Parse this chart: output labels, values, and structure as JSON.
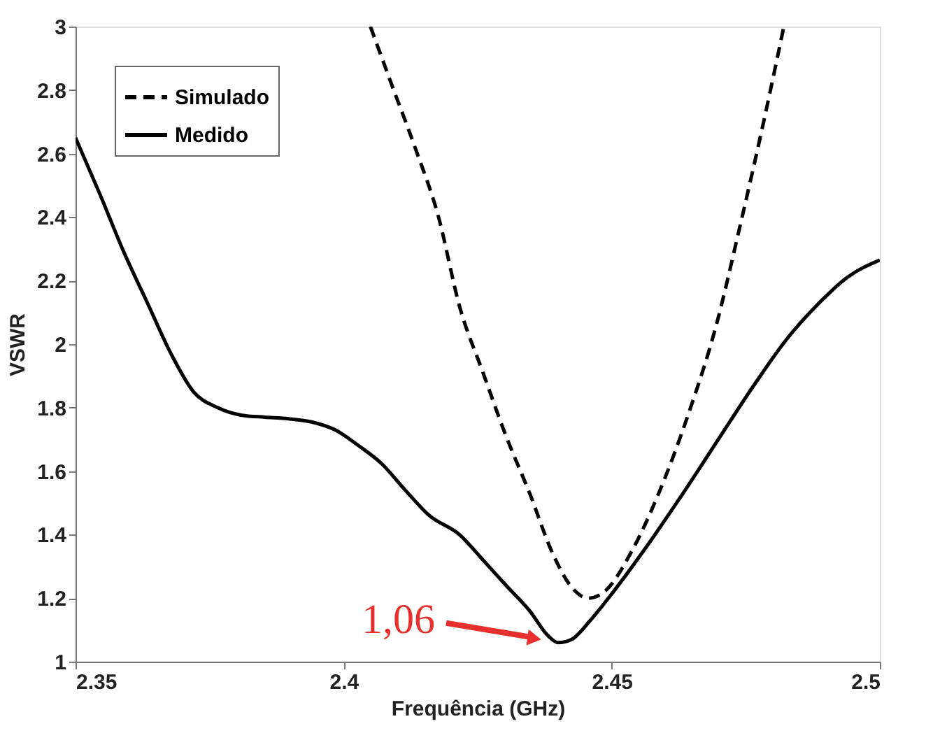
{
  "chart_data": {
    "type": "line",
    "xlabel": "Frequência (GHz)",
    "ylabel": "VSWR",
    "xlim": [
      2.35,
      2.5
    ],
    "xticks": [
      2.35,
      2.4,
      2.45,
      2.5
    ],
    "ylim": [
      1,
      3
    ],
    "yticks": [
      1,
      1.2,
      1.4,
      1.6,
      1.8,
      2,
      2.2,
      2.4,
      2.6,
      2.8,
      3
    ],
    "grid": false,
    "legend": "top left",
    "marker": "none",
    "series": [
      {
        "name": "Simulado",
        "color": "#000000",
        "line_style": "dashed",
        "x": [
          2.405,
          2.4089,
          2.4133,
          2.4177,
          2.4216,
          2.426,
          2.4303,
          2.4347,
          2.439,
          2.4425,
          2.4456,
          2.4486,
          2.4538,
          2.459,
          2.4643,
          2.4695,
          2.4739,
          2.4782,
          2.4821
        ],
        "values": [
          3.0,
          2.82,
          2.62,
          2.4,
          2.12,
          1.91,
          1.71,
          1.53,
          1.34,
          1.235,
          1.2,
          1.22,
          1.35,
          1.54,
          1.78,
          2.06,
          2.37,
          2.69,
          3.0
        ]
      },
      {
        "name": "Medido",
        "color": "#000000",
        "line_style": "solid",
        "x": [
          2.35,
          2.3546,
          2.359,
          2.3634,
          2.3678,
          2.372,
          2.3765,
          2.381,
          2.3853,
          2.3897,
          2.394,
          2.3984,
          2.4028,
          2.407,
          2.4115,
          2.416,
          2.4216,
          2.426,
          2.4303,
          2.4347,
          2.4382,
          2.44,
          2.4425,
          2.446,
          2.4503,
          2.4564,
          2.4625,
          2.4695,
          2.4765,
          2.4826,
          2.4887,
          2.4939,
          2.5
        ],
        "values": [
          2.65,
          2.47,
          2.29,
          2.13,
          1.97,
          1.85,
          1.8,
          1.776,
          1.77,
          1.765,
          1.755,
          1.73,
          1.68,
          1.625,
          1.54,
          1.46,
          1.4,
          1.32,
          1.24,
          1.16,
          1.08,
          1.06,
          1.07,
          1.13,
          1.22,
          1.36,
          1.51,
          1.69,
          1.87,
          2.015,
          2.13,
          2.21,
          2.265
        ]
      }
    ],
    "annotations": [
      {
        "text": "1,06",
        "x": 2.44,
        "y": 1.06
      }
    ]
  }
}
